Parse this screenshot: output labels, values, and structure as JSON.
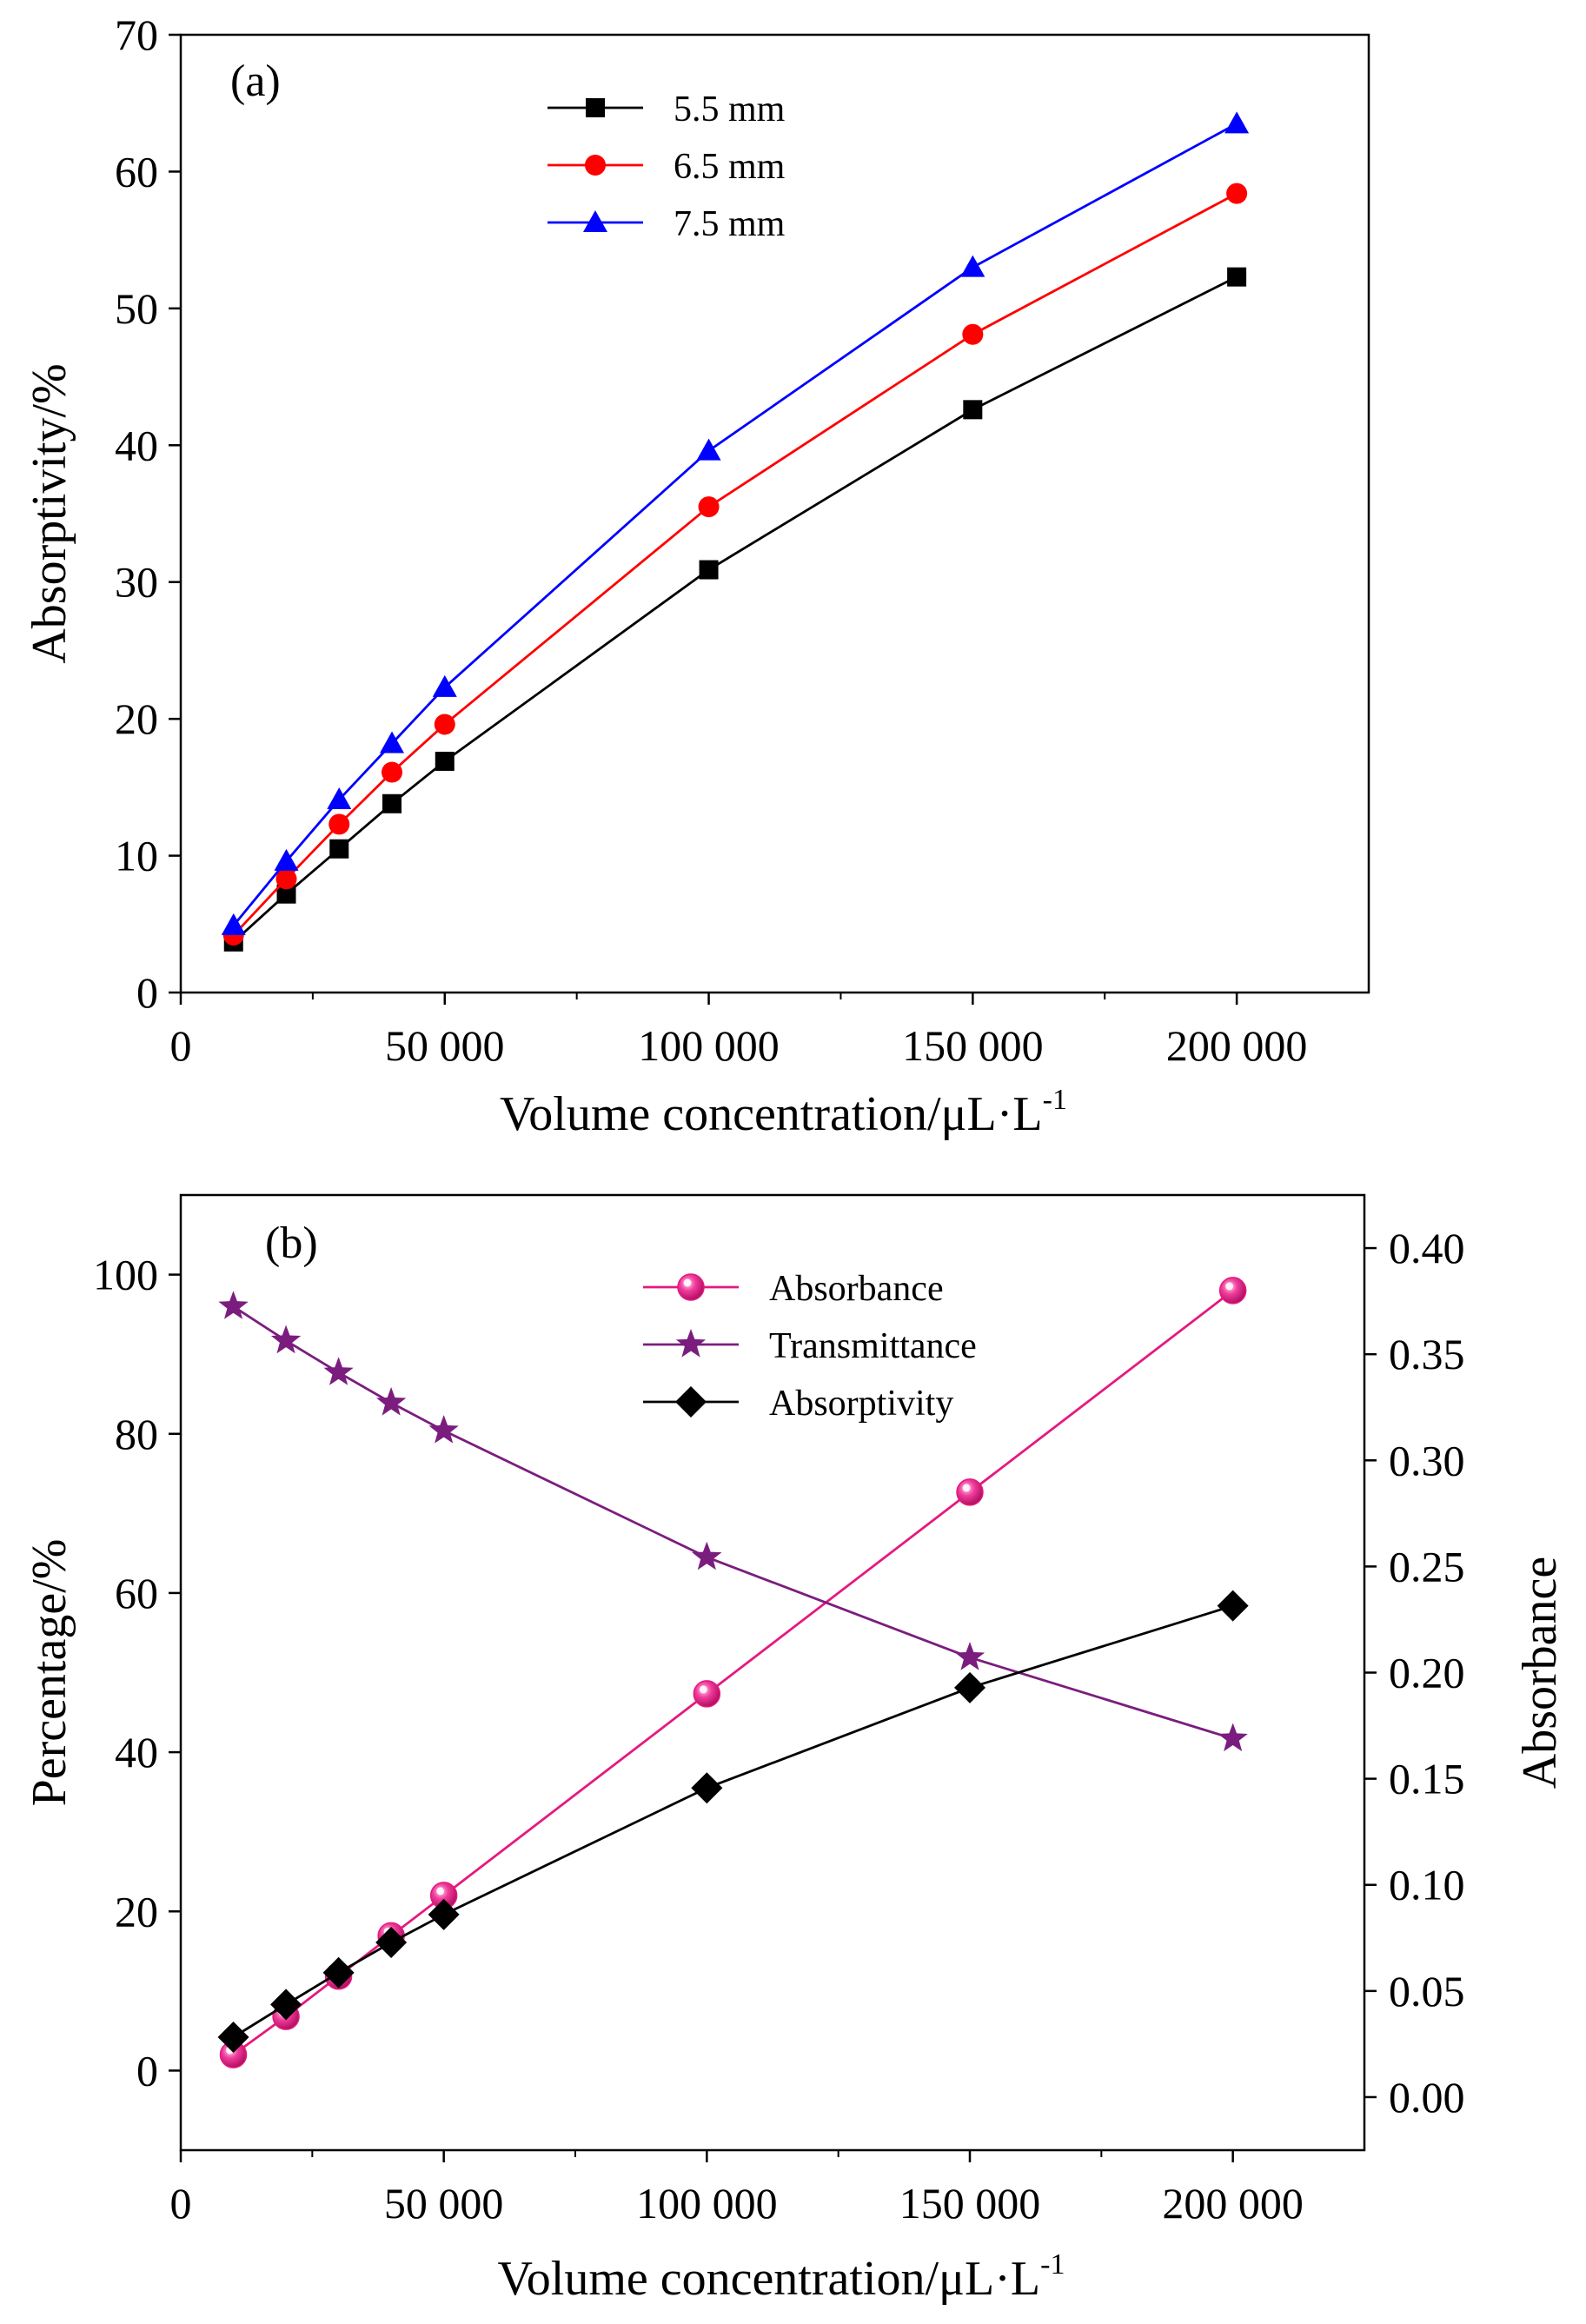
{
  "chart_data": [
    {
      "type": "line",
      "panel_label": "(a)",
      "xlabel": "Volume concentration/μL·L",
      "xlabel_superscript": "-1",
      "ylabel": "Absorptivity/%",
      "xlim": [
        0,
        225000
      ],
      "ylim": [
        0,
        70
      ],
      "xticks": [
        0,
        50000,
        100000,
        150000,
        200000
      ],
      "xtick_labels": [
        "0",
        "50 000",
        "100 000",
        "150 000",
        "200 000"
      ],
      "yticks": [
        0,
        10,
        20,
        30,
        40,
        50,
        60,
        70
      ],
      "ytick_labels": [
        "0",
        "10",
        "20",
        "30",
        "40",
        "50",
        "60",
        "70"
      ],
      "grid": false,
      "legend_position": "top-center",
      "x": [
        10000,
        20000,
        30000,
        40000,
        50000,
        100000,
        150000,
        200000
      ],
      "series": [
        {
          "name": "5.5 mm",
          "color": "#000000",
          "marker": "square",
          "values": [
            3.7,
            7.2,
            10.5,
            13.8,
            16.9,
            30.9,
            42.6,
            52.3
          ]
        },
        {
          "name": "6.5 mm",
          "color": "#ff0000",
          "marker": "circle",
          "values": [
            4.2,
            8.3,
            12.3,
            16.1,
            19.6,
            35.5,
            48.1,
            58.4
          ]
        },
        {
          "name": "7.5 mm",
          "color": "#0000ff",
          "marker": "triangle",
          "values": [
            4.9,
            9.6,
            14.1,
            18.2,
            22.3,
            39.6,
            53.0,
            63.5
          ]
        }
      ]
    },
    {
      "type": "line",
      "panel_label": "(b)",
      "xlabel": "Volume concentration/μL·L",
      "xlabel_superscript": "-1",
      "ylabel": "Percentage/%",
      "ylabel_right": "Absorbance",
      "xlim": [
        0,
        225000
      ],
      "ylim": [
        -10,
        110
      ],
      "ylim_right": [
        -0.025,
        0.425
      ],
      "xticks": [
        0,
        50000,
        100000,
        150000,
        200000
      ],
      "xtick_labels": [
        "0",
        "50 000",
        "100 000",
        "150 000",
        "200 000"
      ],
      "yticks": [
        0,
        20,
        40,
        60,
        80,
        100
      ],
      "ytick_labels": [
        "0",
        "20",
        "40",
        "60",
        "80",
        "100"
      ],
      "yticks_right": [
        0,
        0.05,
        0.1,
        0.15,
        0.2,
        0.25,
        0.3,
        0.35,
        0.4
      ],
      "ytick_labels_right": [
        "0.00",
        "0.05",
        "0.10",
        "0.15",
        "0.20",
        "0.25",
        "0.30",
        "0.35",
        "0.40"
      ],
      "grid": false,
      "legend_position": "top-center",
      "x": [
        10000,
        20000,
        30000,
        40000,
        50000,
        100000,
        150000,
        200000
      ],
      "series": [
        {
          "name": "Absorbance",
          "color": "#e5197f",
          "marker": "sphere",
          "axis": "right",
          "values": [
            0.02,
            0.038,
            0.057,
            0.076,
            0.095,
            0.19,
            0.285,
            0.38
          ]
        },
        {
          "name": "Transmittance",
          "color": "#7b1d7e",
          "marker": "star",
          "axis": "left",
          "values": [
            96,
            91.7,
            87.7,
            83.9,
            80.4,
            64.5,
            51.9,
            41.7
          ]
        },
        {
          "name": "Absorptivity",
          "color": "#000000",
          "marker": "diamond",
          "axis": "left",
          "values": [
            4.2,
            8.3,
            12.3,
            16.1,
            19.6,
            35.5,
            48.1,
            58.4
          ]
        }
      ]
    }
  ]
}
